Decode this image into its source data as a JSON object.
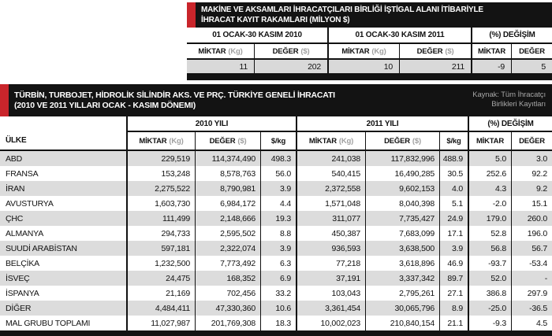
{
  "colors": {
    "accent_red": "#c9252b",
    "bar_black": "#131313",
    "row_gray_t1": "#d9d9d9",
    "row_gray_t2": "#dcdcdc",
    "unit_gray": "#9f9f9f"
  },
  "table1": {
    "title_line1": "MAKİNE VE AKSAMLARI İHRACATÇILARI BİRLİĞİ İŞTİGAL ALANI İTİBARİYLE",
    "title_line2": "İHRACAT KAYIT RAKAMLARI (MİLYON $)",
    "col_groups": [
      "01 OCAK-30 KASIM 2010",
      "01 OCAK-30 KASIM 2011",
      "(%) DEĞİŞİM"
    ],
    "sub_headers": [
      {
        "label": "MİKTAR",
        "unit": "(Kg)"
      },
      {
        "label": "DEĞER",
        "unit": "($)"
      },
      {
        "label": "MİKTAR",
        "unit": "(Kg)"
      },
      {
        "label": "DEĞER",
        "unit": "($)"
      },
      {
        "label": "MİKTAR",
        "unit": ""
      },
      {
        "label": "DEĞER",
        "unit": ""
      }
    ],
    "row": [
      "11",
      "202",
      "10",
      "211",
      "-9",
      "5"
    ]
  },
  "table2": {
    "title_line1": "TÜRBİN, TURBOJET, HİDROLİK SİLİNDİR AKS. VE PRÇ. TÜRKİYE GENELİ İHRACATI",
    "title_line2": "(2010 ve 2011 Yılları Ocak - Kasım Dönemi)",
    "source_line1": "Kaynak: Tüm İhracatçı",
    "source_line2": "Birlikleri Kayıtları",
    "country_header": "ÜLKE",
    "col_groups": [
      "2010 YILI",
      "2011 YILI",
      "(%) DEĞİŞİM"
    ],
    "sub_headers": [
      {
        "label": "MİKTAR",
        "unit": "(Kg)"
      },
      {
        "label": "DEĞER",
        "unit": "($)"
      },
      {
        "label": "$/kg",
        "unit": ""
      },
      {
        "label": "MİKTAR",
        "unit": "(Kg)"
      },
      {
        "label": "DEĞER",
        "unit": "($)"
      },
      {
        "label": "$/kg",
        "unit": ""
      },
      {
        "label": "MİKTAR",
        "unit": ""
      },
      {
        "label": "DEĞER",
        "unit": ""
      }
    ],
    "rows": [
      {
        "ulke": "ABD",
        "m2010": "229,519",
        "d2010": "114,374,490",
        "kg2010": "498.3",
        "m2011": "241,038",
        "d2011": "117,832,996",
        "kg2011": "488.9",
        "mchg": "5.0",
        "dchg": "3.0"
      },
      {
        "ulke": "FRANSA",
        "m2010": "153,248",
        "d2010": "8,578,763",
        "kg2010": "56.0",
        "m2011": "540,415",
        "d2011": "16,490,285",
        "kg2011": "30.5",
        "mchg": "252.6",
        "dchg": "92.2"
      },
      {
        "ulke": "İRAN",
        "m2010": "2,275,522",
        "d2010": "8,790,981",
        "kg2010": "3.9",
        "m2011": "2,372,558",
        "d2011": "9,602,153",
        "kg2011": "4.0",
        "mchg": "4.3",
        "dchg": "9.2"
      },
      {
        "ulke": "AVUSTURYA",
        "m2010": "1,603,730",
        "d2010": "6,984,172",
        "kg2010": "4.4",
        "m2011": "1,571,048",
        "d2011": "8,040,398",
        "kg2011": "5.1",
        "mchg": "-2.0",
        "dchg": "15.1"
      },
      {
        "ulke": "ÇHC",
        "m2010": "111,499",
        "d2010": "2,148,666",
        "kg2010": "19.3",
        "m2011": "311,077",
        "d2011": "7,735,427",
        "kg2011": "24.9",
        "mchg": "179.0",
        "dchg": "260.0"
      },
      {
        "ulke": "ALMANYA",
        "m2010": "294,733",
        "d2010": "2,595,502",
        "kg2010": "8.8",
        "m2011": "450,387",
        "d2011": "7,683,099",
        "kg2011": "17.1",
        "mchg": "52.8",
        "dchg": "196.0"
      },
      {
        "ulke": "SUUDİ ARABİSTAN",
        "m2010": "597,181",
        "d2010": "2,322,074",
        "kg2010": "3.9",
        "m2011": "936,593",
        "d2011": "3,638,500",
        "kg2011": "3.9",
        "mchg": "56.8",
        "dchg": "56.7"
      },
      {
        "ulke": "BELÇİKA",
        "m2010": "1,232,500",
        "d2010": "7,773,492",
        "kg2010": "6.3",
        "m2011": "77,218",
        "d2011": "3,618,896",
        "kg2011": "46.9",
        "mchg": "-93.7",
        "dchg": "-53.4"
      },
      {
        "ulke": "İSVEÇ",
        "m2010": "24,475",
        "d2010": "168,352",
        "kg2010": "6.9",
        "m2011": "37,191",
        "d2011": "3,337,342",
        "kg2011": "89.7",
        "mchg": "52.0",
        "dchg": "-"
      },
      {
        "ulke": "İSPANYA",
        "m2010": "21,169",
        "d2010": "702,456",
        "kg2010": "33.2",
        "m2011": "103,043",
        "d2011": "2,795,261",
        "kg2011": "27.1",
        "mchg": "386.8",
        "dchg": "297.9"
      },
      {
        "ulke": "DİĞER",
        "m2010": "4,484,411",
        "d2010": "47,330,360",
        "kg2010": "10.6",
        "m2011": "3,361,454",
        "d2011": "30,065,796",
        "kg2011": "8.9",
        "mchg": "-25.0",
        "dchg": "-36.5"
      },
      {
        "ulke": "MAL GRUBU TOPLAMI",
        "m2010": "11,027,987",
        "d2010": "201,769,308",
        "kg2010": "18.3",
        "m2011": "10,002,023",
        "d2011": "210,840,154",
        "kg2011": "21.1",
        "mchg": "-9.3",
        "dchg": "4.5"
      }
    ]
  }
}
